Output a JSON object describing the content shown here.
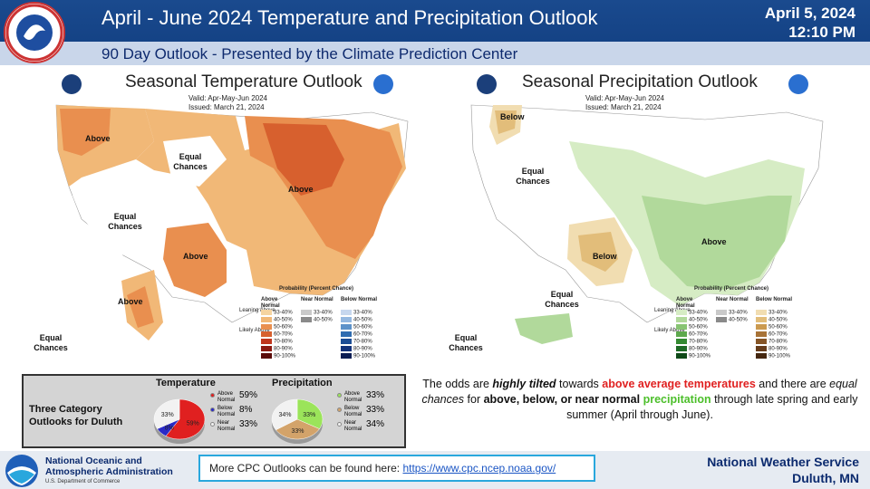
{
  "header": {
    "title": "April - June 2024 Temperature and Precipitation Outlook",
    "subtitle": "90 Day Outlook - Presented by the Climate Prediction Center",
    "date": "April 5, 2024",
    "time": "12:10 PM"
  },
  "temp_map": {
    "title": "Seasonal Temperature Outlook",
    "valid": "Valid:  Apr-May-Jun 2024",
    "issued": "Issued:  March 21, 2024",
    "labels": [
      "Above",
      "Equal Chances",
      "Equal Chances",
      "Above",
      "Above",
      "Above",
      "Equal Chances"
    ]
  },
  "precip_map": {
    "title": "Seasonal Precipitation Outlook",
    "valid": "Valid:  Apr-May-Jun 2024",
    "issued": "Issued:  March 21, 2024",
    "labels": [
      "Below",
      "Equal Chances",
      "Below",
      "Above",
      "Equal Chances",
      "Equal Chances"
    ]
  },
  "legend": {
    "title": "Probability (Percent Chance)",
    "cols": [
      "Above Normal",
      "Near Normal",
      "Below Normal"
    ],
    "ranges": [
      "33-40%",
      "40-50%",
      "50-60%",
      "60-70%",
      "70-80%",
      "80-90%",
      "90-100%"
    ],
    "near": [
      "33-40%",
      "40-50%"
    ],
    "leaning_above": "Leaning Above",
    "likely_above": "Likely Above",
    "leaning_below": "Leaning Below",
    "likely_below": "Likely Below",
    "equal": "Equal Chances",
    "temp_colors_above": [
      "#f5d4a0",
      "#f1b877",
      "#e98f4f",
      "#d7602e",
      "#c0361d",
      "#8c1a12",
      "#5a0a08"
    ],
    "temp_colors_below": [
      "#c6d7ee",
      "#94b8e0",
      "#5d92c9",
      "#2f6cb0",
      "#1c4d95",
      "#12327a",
      "#0b1d54"
    ],
    "precip_colors_above": [
      "#d6ecc4",
      "#b1d99b",
      "#87c472",
      "#5ea94d",
      "#348a32",
      "#1d6a25",
      "#0f4a18"
    ],
    "precip_colors_below": [
      "#f1ddb1",
      "#e2bd7a",
      "#cb9a4f",
      "#a87337",
      "#865527",
      "#663c1b",
      "#45270f"
    ]
  },
  "duluth": {
    "label": "Three Category Outlooks for Duluth",
    "temp_title": "Temperature",
    "precip_title": "Precipitation",
    "temp": [
      {
        "name": "Above Normal",
        "value": "59%",
        "color": "#e02020"
      },
      {
        "name": "Below Normal",
        "value": "8%",
        "color": "#2a2ac8"
      },
      {
        "name": "Near Normal",
        "value": "33%",
        "color": "#f2f2f2"
      }
    ],
    "precip": [
      {
        "name": "Above Normal",
        "value": "33%",
        "color": "#9be45a"
      },
      {
        "name": "Below Normal",
        "value": "33%",
        "color": "#d3a36a"
      },
      {
        "name": "Near Normal",
        "value": "34%",
        "color": "#f2f2f2"
      }
    ]
  },
  "message": {
    "p1": "The odds are ",
    "p2": "highly tilted",
    "p3": " towards ",
    "p4": "above average temperatures",
    "p5": " and there are ",
    "p6": "equal chances",
    "p7": " for ",
    "p8": "above, below, or near normal",
    "p9": " ",
    "p10": "precipitation",
    "p11": " through late spring and early summer (April through June)."
  },
  "footer": {
    "noaa_line1": "National Oceanic and",
    "noaa_line2": "Atmospheric Administration",
    "noaa_dept": "U.S. Department of Commerce",
    "link_text": "More CPC Outlooks can be found here: ",
    "link_url": "https://www.cpc.ncep.noaa.gov/",
    "nws": "National Weather Service",
    "office": "Duluth, MN"
  }
}
